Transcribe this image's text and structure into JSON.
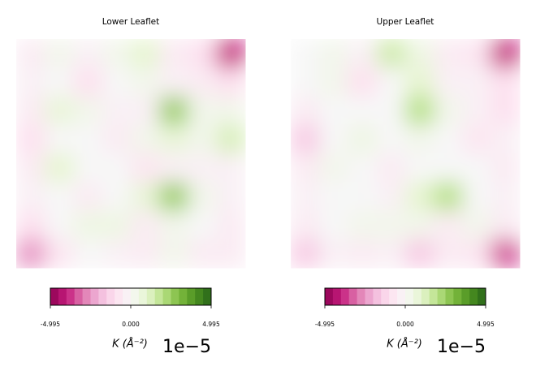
{
  "chart_data": [
    {
      "type": "heatmap",
      "title": "Lower Leaflet",
      "z": [
        [
          -0.5,
          0.3,
          -0.3,
          0.3,
          1.0,
          -0.5,
          -1.0,
          -4.0
        ],
        [
          -0.3,
          0.0,
          -1.0,
          0.0,
          0.3,
          -0.3,
          -0.5,
          -1.0
        ],
        [
          -0.5,
          0.8,
          0.3,
          -0.3,
          -0.3,
          2.5,
          0.3,
          0.3
        ],
        [
          -1.0,
          0.0,
          0.0,
          -0.5,
          0.3,
          0.8,
          0.3,
          1.3
        ],
        [
          -0.5,
          1.0,
          0.0,
          0.0,
          -0.8,
          -0.3,
          -0.3,
          -0.3
        ],
        [
          -0.3,
          0.0,
          -0.5,
          0.0,
          0.8,
          2.5,
          0.3,
          -0.3
        ],
        [
          -1.0,
          0.0,
          0.5,
          0.5,
          -0.5,
          0.3,
          0.0,
          -0.5
        ],
        [
          -2.5,
          -0.8,
          0.0,
          -0.3,
          -0.5,
          0.3,
          -0.5,
          -0.5
        ]
      ],
      "vlim": [
        -4.995,
        4.995
      ],
      "colormap": [
        "#8e0152",
        "#c51b7d",
        "#de77ae",
        "#f1b6da",
        "#fde0ef",
        "#f7f7f7",
        "#e6f5d0",
        "#b8e186",
        "#7fbc41",
        "#4d9221",
        "#276419"
      ],
      "colorbar_ticks": [
        -4.995,
        {
          "value": 0,
          "label": "0.000"
        },
        4.995
      ],
      "colorbar_label": "K (Å⁻²)",
      "offset_text": "1e−5"
    },
    {
      "type": "heatmap",
      "title": "Upper Leaflet",
      "z": [
        [
          0.0,
          0.3,
          -0.3,
          1.5,
          0.5,
          -0.5,
          -0.8,
          -4.0
        ],
        [
          0.0,
          0.3,
          -1.0,
          0.0,
          1.0,
          -0.3,
          -0.3,
          -1.0
        ],
        [
          -0.5,
          0.0,
          0.0,
          0.0,
          2.0,
          0.3,
          -0.3,
          -1.0
        ],
        [
          -1.5,
          0.0,
          0.5,
          0.0,
          0.3,
          0.0,
          -0.8,
          -0.3
        ],
        [
          -0.5,
          0.3,
          0.0,
          -0.5,
          0.0,
          0.0,
          0.0,
          -0.5
        ],
        [
          -0.3,
          0.0,
          0.0,
          -0.3,
          1.0,
          2.0,
          0.0,
          -0.3
        ],
        [
          -0.5,
          0.0,
          0.3,
          0.3,
          0.3,
          -0.5,
          0.3,
          -0.5
        ],
        [
          -1.5,
          -0.3,
          -0.5,
          -0.3,
          -1.5,
          -0.5,
          -0.8,
          -3.5
        ]
      ],
      "vlim": [
        -4.995,
        4.995
      ],
      "colormap": [
        "#8e0152",
        "#c51b7d",
        "#de77ae",
        "#f1b6da",
        "#fde0ef",
        "#f7f7f7",
        "#e6f5d0",
        "#b8e186",
        "#7fbc41",
        "#4d9221",
        "#276419"
      ],
      "colorbar_ticks": [
        -4.995,
        {
          "value": 0,
          "label": "0.000"
        },
        4.995
      ],
      "colorbar_label": "K (Å⁻²)",
      "offset_text": "1e−5"
    }
  ]
}
